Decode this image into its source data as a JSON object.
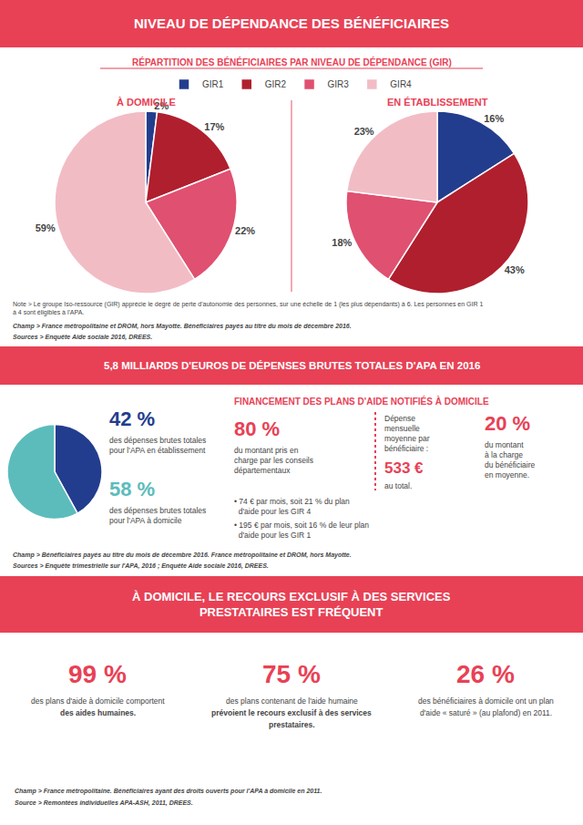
{
  "chart_data": [
    {
      "type": "pie",
      "title": "À DOMICILE",
      "categories": [
        "GIR1",
        "GIR2",
        "GIR3",
        "GIR4"
      ],
      "values": [
        2,
        17,
        22,
        59
      ],
      "value_labels": [
        "2%",
        "17%",
        "22%",
        "59%"
      ],
      "colors": [
        "#233d8e",
        "#b01f2e",
        "#e05070",
        "#f2bcc5"
      ],
      "data_labels": true,
      "legend": "top"
    },
    {
      "type": "pie",
      "title": "EN ÉTABLISSEMENT",
      "categories": [
        "GIR1",
        "GIR2",
        "GIR3",
        "GIR4"
      ],
      "values": [
        16,
        43,
        18,
        23
      ],
      "value_labels": [
        "16%",
        "43%",
        "18%",
        "23%"
      ],
      "colors": [
        "#233d8e",
        "#b01f2e",
        "#e05070",
        "#f2bcc5"
      ],
      "data_labels": true
    },
    {
      "type": "pie",
      "values": [
        42,
        58
      ],
      "value_labels": [
        "42 %",
        "58 %"
      ],
      "colors": [
        "#233d8e",
        "#5cbcbc"
      ]
    }
  ],
  "sections": [
    {
      "title": "NIVEAU DE DÉPENDANCE DES BÉNÉFICIAIRES",
      "subtitle": "RÉPARTITION DES BÉNÉFICIAIRES PAR NIVEAU DE DÉPENDANCE (GIR)",
      "color": "#e84155",
      "annotations": [
        "Note > Le groupe Iso-ressource (GIR) apprécie le degré de perte d'autonomie des personnes, sur une échelle de 1 (les plus dépendants) à 6. Les personnes en GIR 1\nà 4 sont éligibles à l'APA.",
        "Champ > France métropolitaine et DROM, hors Mayotte. Bénéficiaires payés au titre du mois de décembre 2016.",
        "Sources > Enquête Aide sociale 2016, DREES."
      ]
    },
    {
      "title": "5,8 MILLIARDS D'EUROS DE DÉPENSES BRUTES TOTALES D'APA EN 2016",
      "subtitle": "FINANCEMENT DES PLANS D'AIDE NOTIFIÉS À DOMICILE",
      "color": "#e84155",
      "annotations": [
        "des dépenses brutes totales\npour l'APA en établissement",
        "des dépenses brutes totales\npour l'APA à domicile",
        "80 %",
        "du montant pris en\ncharge par les conseils\ndépartementaux",
        "Dépense\nmensuelle\nmoyenne par\nbénéficiaire :",
        "533 €",
        "au total.",
        "20 %",
        "du montant\nà la charge\ndu bénéficiaire\nen moyenne.",
        "• 74 € par mois, soit 21 % du plan\n  d'aide pour les GIR 4",
        "• 195 € par mois, soit 16 % de leur plan\n  d'aide pour les GIR 1",
        "Champ > Bénéficiaires payés au titre du mois de décembre 2016. France métropolitaine et DROM, hors Mayotte.",
        "Sources > Enquête trimestrielle sur l'APA, 2016 ; Enquête Aide sociale 2016, DREES."
      ]
    },
    {
      "title": "À DOMICILE, LE RECOURS EXCLUSIF À DES SERVICES\nPRESTATAIRES EST FRÉQUENT",
      "color": "#e84155",
      "annotations": [
        "99 %",
        "des plans d'aide à domicile comportent",
        "des aides humaines.",
        "75 %",
        "des plans contenant de l'aide humaine",
        "prévoient le recours exclusif à des services",
        "prestataires.",
        "26 %",
        "des bénéficiaires à domicile ont un plan",
        "d'aide « saturé » (au plafond) en 2011.",
        "Champ > France métropolitaine. Bénéficiaires ayant des droits ouverts pour l'APA à domicile en 2011.",
        "Source > Remontées individuelles APA-ASH, 2011, DREES."
      ]
    }
  ]
}
